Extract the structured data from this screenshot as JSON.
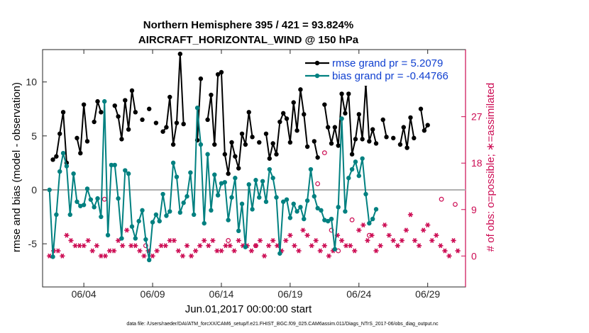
{
  "chart_data": {
    "type": "line",
    "title_line1": "Northern Hemisphere 395 / 421 = 93.824%",
    "title_line2": "AIRCRAFT_HORIZONTAL_WIND @ 150 hPa",
    "xlabel": "Jun.01,2017 00:00:00 start",
    "ylabel_left": "rmse and bias (model - observation)",
    "ylabel_right": "# of obs: o=possible; ∗=assimilated",
    "x_range_days": [
      0.5,
      31.25
    ],
    "x_ticks": [
      {
        "day": 3.5,
        "label": "06/04"
      },
      {
        "day": 8.5,
        "label": "06/09"
      },
      {
        "day": 13.5,
        "label": "06/14"
      },
      {
        "day": 18.5,
        "label": "06/19"
      },
      {
        "day": 23.5,
        "label": "06/24"
      },
      {
        "day": 28.5,
        "label": "06/29"
      }
    ],
    "ylim_left": [
      -9,
      13
    ],
    "yticks_left": [
      "-5",
      "0",
      "5",
      "10"
    ],
    "ylim_right": [
      -6,
      40
    ],
    "yticks_right": [
      "0",
      "9",
      "18",
      "27"
    ],
    "colors": {
      "rmse": "#000000",
      "bias": "#008080",
      "counts": "#cc0a52",
      "zero_line": "#b0b0b0"
    },
    "series": [
      {
        "name": "rmse grand pr = 5.2079",
        "key": "rmse",
        "values": [
          null,
          2.8,
          3.1,
          5.2,
          7.2,
          2.5,
          null,
          null,
          4.8,
          3.4,
          7.9,
          4.5,
          null,
          6.3,
          8.2,
          7.2,
          null,
          null,
          null,
          7.8,
          6.8,
          4.7,
          8.3,
          5.6,
          9.2,
          7.2,
          null,
          6.5,
          null,
          7.5,
          null,
          6.2,
          null,
          5.4,
          5.8,
          8.6,
          4.2,
          6.2,
          12.6,
          6.1,
          null,
          null,
          null,
          4.6,
          10.3,
          null,
          6.5,
          8.8,
          4.2,
          10.7,
          10.9,
          3.3,
          1.5,
          4.4,
          3.1,
          2.0,
          5.2,
          4.2,
          7.2,
          4.9,
          null,
          4.4,
          null,
          5.2,
          2.9,
          4.3,
          3.3,
          6.3,
          7.1,
          6.6,
          4.4,
          8.1,
          5.5,
          9.3,
          7.0,
          4.0,
          null,
          4.5,
          3.0,
          null,
          7.9,
          5.8,
          4.3,
          5.8,
          4.1,
          8.9,
          7.1,
          8.9,
          3.3,
          4.7,
          7.0,
          4.7,
          9.8,
          4.5,
          5.6,
          4.3,
          null,
          6.5,
          4.9,
          null,
          4.8,
          null,
          4.2,
          5.8,
          3.9,
          6.7,
          4.8,
          null,
          7.5,
          5.5,
          6.0
        ],
        "x_start_day": 1.0,
        "x_step_day": 0.25
      },
      {
        "name": "bias grand pr = -0.44766",
        "key": "bias",
        "values": [
          0.0,
          -6.2,
          -2.3,
          1.7,
          3.4,
          2.2,
          -2.3,
          1.5,
          -1.1,
          -1.5,
          -1.4,
          0.1,
          -0.9,
          -1.6,
          -0.8,
          -2.5,
          8.2,
          -4.2,
          2.3,
          2.3,
          -0.8,
          -4.5,
          1.8,
          1.5,
          -3.4,
          -4.5,
          -2.9,
          -1.9,
          -4.6,
          -6.5,
          -3.0,
          -2.3,
          -2.9,
          -0.4,
          -2.4,
          -2.0,
          2.5,
          1.2,
          -2.1,
          -1.2,
          -0.6,
          1.6,
          -2.3,
          7.6,
          4.2,
          -3.1,
          3.3,
          -1.9,
          1.4,
          -0.5,
          0.6,
          0.7,
          -2.8,
          -0.7,
          1.1,
          -3.8,
          -1.3,
          -5.3,
          0.5,
          -1.8,
          0.9,
          -0.7,
          0.8,
          -1.1,
          1.9,
          1.1,
          -0.7,
          -5.9,
          -1.1,
          -0.9,
          -2.6,
          -1.3,
          -2.0,
          -1.6,
          -2.7,
          -1.0,
          1.9,
          -0.6,
          -1.7,
          -1.9,
          -2.8,
          -2.9,
          -2.7,
          -5.5,
          -1.6,
          6.6,
          -2.0,
          1.1,
          1.9,
          2.6,
          1.3,
          2.9,
          -0.4,
          -3.1,
          -2.7,
          -1.8
        ],
        "x_start_day": 1.0,
        "x_step_day": 0.25
      }
    ],
    "counts": {
      "scale_note": "right axis, number of observations",
      "assimilated": [
        0,
        1,
        1,
        0,
        4,
        3,
        2,
        2,
        2,
        3,
        1,
        2,
        0,
        0,
        1,
        1,
        3,
        2,
        5,
        2,
        2,
        1,
        0,
        1,
        0,
        1,
        2,
        2,
        3,
        3,
        1,
        0,
        2,
        0,
        1,
        2,
        3,
        2,
        3,
        1,
        1,
        2,
        2,
        1,
        3,
        2,
        2,
        1,
        2,
        3,
        0,
        2,
        3,
        2,
        1,
        3,
        4,
        2,
        1,
        5,
        4,
        2,
        3,
        1,
        2,
        0,
        1,
        4,
        3,
        2,
        2,
        1,
        5,
        6,
        3,
        4,
        1,
        2,
        6,
        4,
        3,
        2,
        3,
        5,
        8,
        3,
        2,
        5,
        6,
        3,
        4,
        2,
        1,
        0,
        3,
        1
      ],
      "possible_markers": [
        {
          "day": 5.0,
          "n": 11
        },
        {
          "day": 8.0,
          "n": 2
        },
        {
          "day": 14.0,
          "n": 3
        },
        {
          "day": 16.0,
          "n": 2
        },
        {
          "day": 20.5,
          "n": 14
        },
        {
          "day": 21.0,
          "n": 20
        },
        {
          "day": 21.5,
          "n": 5
        },
        {
          "day": 22.0,
          "n": 1
        },
        {
          "day": 23.0,
          "n": 7
        },
        {
          "day": 24.25,
          "n": 4
        },
        {
          "day": 29.5,
          "n": 11
        },
        {
          "day": 30.5,
          "n": 10
        }
      ],
      "x_start_day": 1.0,
      "x_step_day": 0.3125
    }
  },
  "legend": {
    "rmse_label": "rmse grand pr = 5.2079",
    "bias_label": "bias grand pr = -0.44766"
  },
  "footer": "data file: /Users/raeder/DAI/ATM_forcXX/CAM6_setup/f.e21.FHIST_BGC.f09_025.CAM6assim.011/Diags_NTrS_2017-06/obs_diag_output.nc"
}
